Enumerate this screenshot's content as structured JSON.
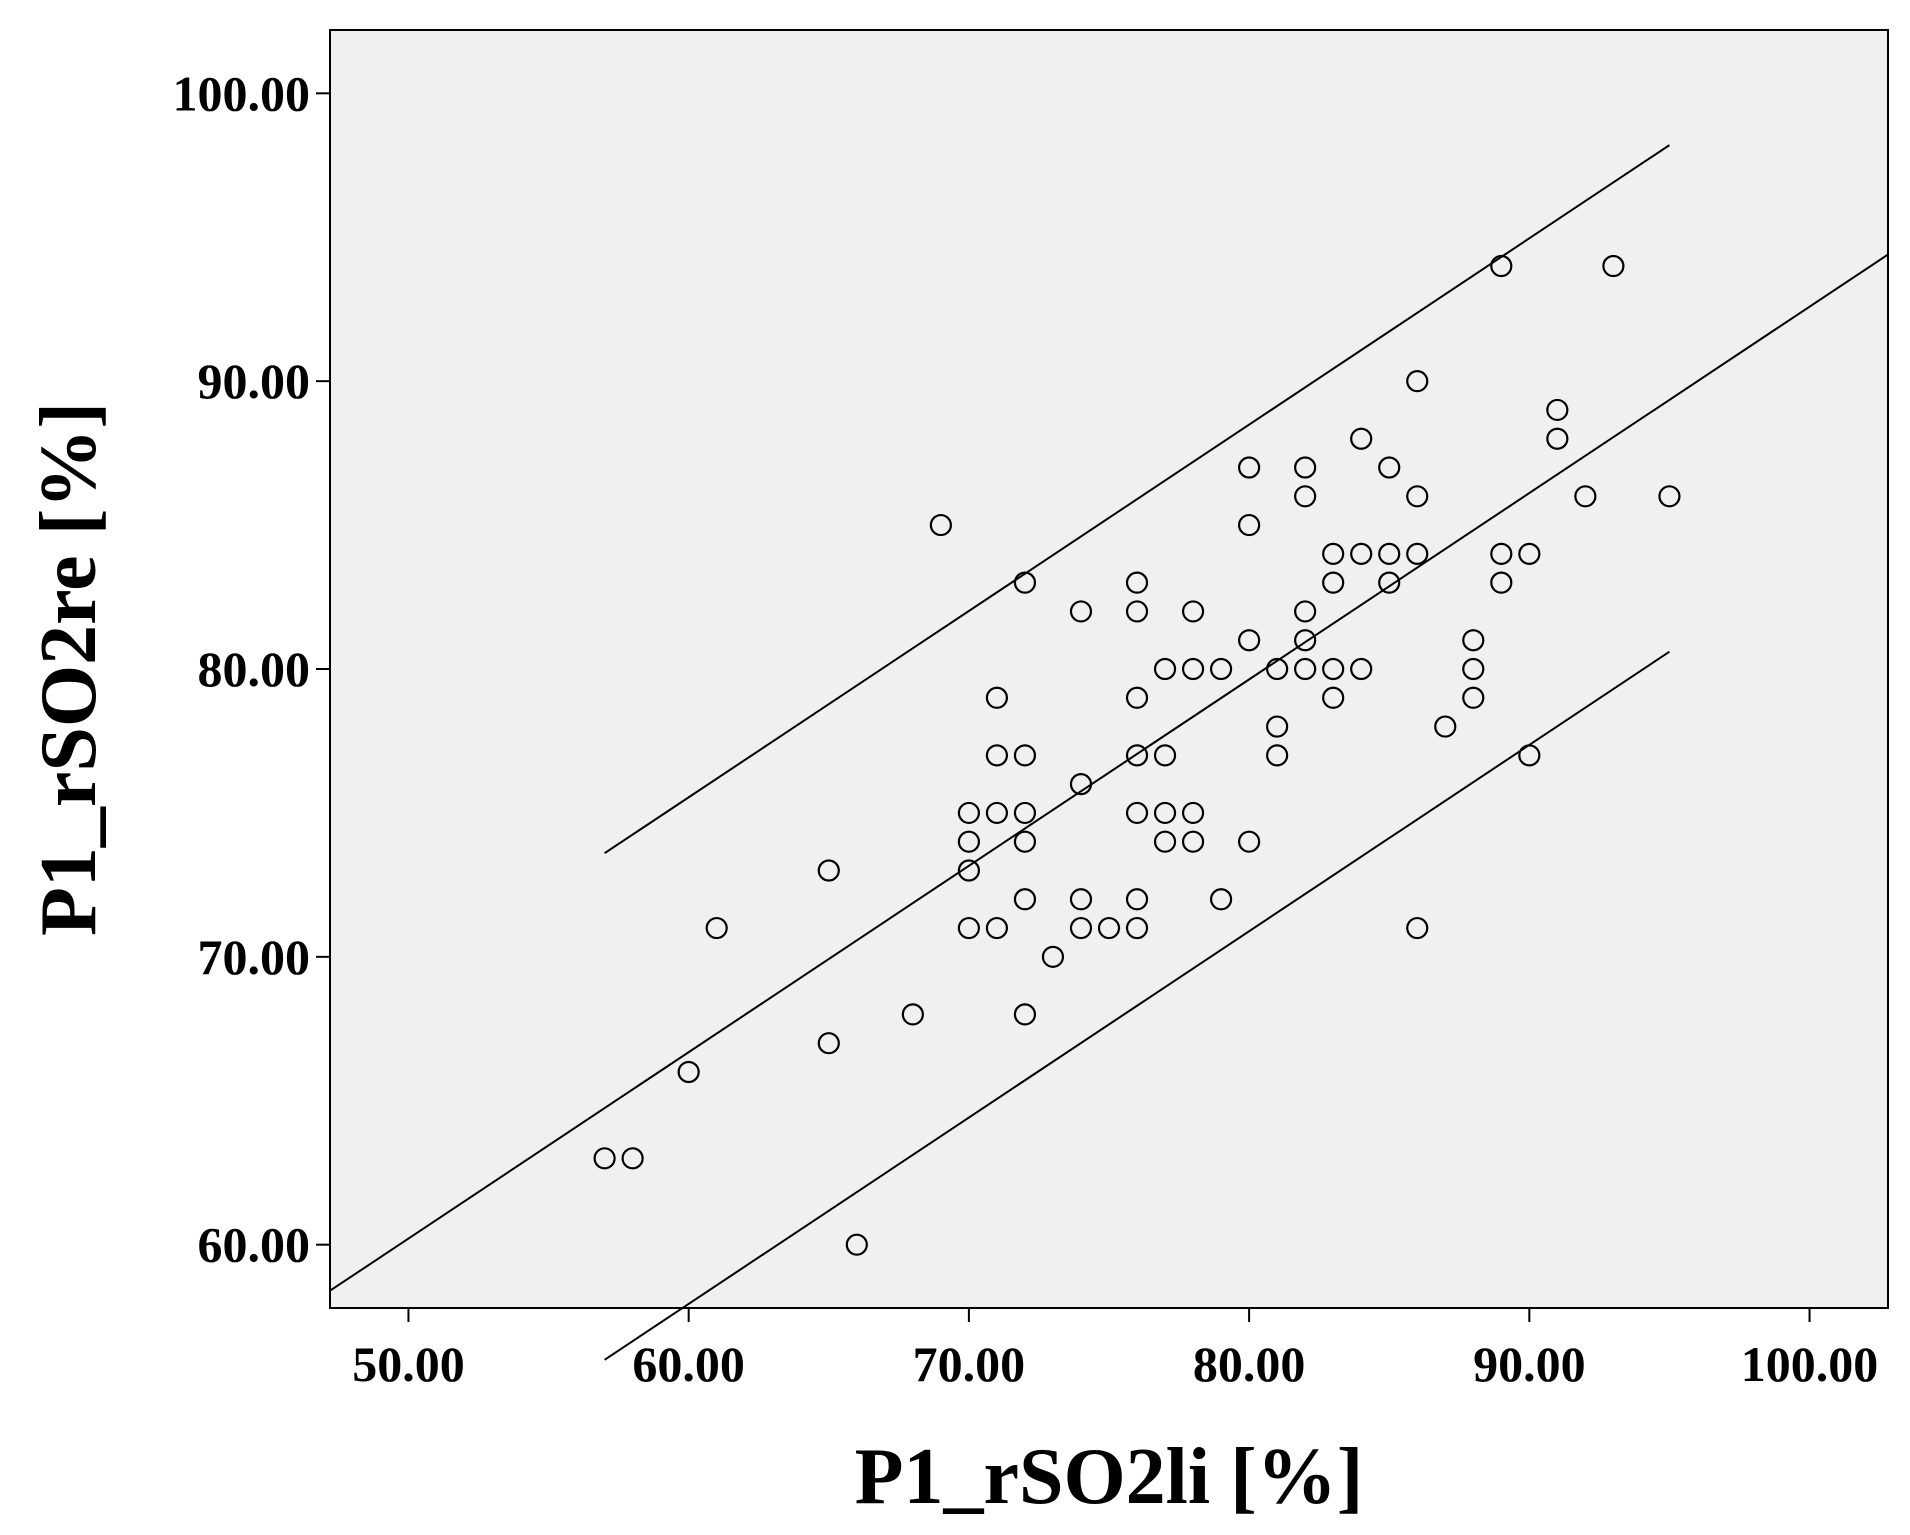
{
  "chart_data": {
    "type": "scatter",
    "xlabel": "P1_rSO2li [%]",
    "ylabel": "P1_rSO2re [%]",
    "xlim": [
      47.2,
      102.8
    ],
    "ylim": [
      57.8,
      102.2
    ],
    "x_ticks": [
      50,
      60,
      70,
      80,
      90,
      100
    ],
    "y_ticks": [
      60,
      70,
      80,
      90,
      100
    ],
    "x_tick_labels": [
      "50.00",
      "60.00",
      "70.00",
      "80.00",
      "90.00",
      "100.00"
    ],
    "y_tick_labels": [
      "60.00",
      "70.00",
      "80.00",
      "90.00",
      "100.00"
    ],
    "grid": false,
    "colors": {
      "plot_background": "#eff0ef",
      "marker_stroke": "#000000",
      "line": "#000000"
    },
    "points": [
      [
        57,
        63
      ],
      [
        58,
        63
      ],
      [
        60,
        66
      ],
      [
        61,
        71
      ],
      [
        65,
        73
      ],
      [
        65,
        67
      ],
      [
        66,
        60
      ],
      [
        68,
        68
      ],
      [
        69,
        85
      ],
      [
        70,
        75
      ],
      [
        70,
        74
      ],
      [
        70,
        73
      ],
      [
        70,
        71
      ],
      [
        71,
        79
      ],
      [
        71,
        77
      ],
      [
        71,
        75
      ],
      [
        71,
        71
      ],
      [
        72,
        83
      ],
      [
        72,
        77
      ],
      [
        72,
        75
      ],
      [
        72,
        74
      ],
      [
        72,
        72
      ],
      [
        72,
        68
      ],
      [
        73,
        70
      ],
      [
        74,
        82
      ],
      [
        74,
        76
      ],
      [
        74,
        72
      ],
      [
        74,
        71
      ],
      [
        75,
        71
      ],
      [
        76,
        83
      ],
      [
        76,
        82
      ],
      [
        76,
        79
      ],
      [
        76,
        77
      ],
      [
        76,
        75
      ],
      [
        76,
        72
      ],
      [
        76,
        71
      ],
      [
        77,
        80
      ],
      [
        77,
        77
      ],
      [
        77,
        75
      ],
      [
        77,
        74
      ],
      [
        78,
        82
      ],
      [
        78,
        80
      ],
      [
        78,
        75
      ],
      [
        78,
        74
      ],
      [
        79,
        80
      ],
      [
        79,
        72
      ],
      [
        80,
        87
      ],
      [
        80,
        85
      ],
      [
        80,
        81
      ],
      [
        80,
        74
      ],
      [
        81,
        80
      ],
      [
        81,
        78
      ],
      [
        81,
        77
      ],
      [
        82,
        87
      ],
      [
        82,
        86
      ],
      [
        82,
        82
      ],
      [
        82,
        81
      ],
      [
        82,
        80
      ],
      [
        83,
        84
      ],
      [
        83,
        83
      ],
      [
        83,
        80
      ],
      [
        83,
        79
      ],
      [
        84,
        88
      ],
      [
        84,
        84
      ],
      [
        84,
        80
      ],
      [
        85,
        87
      ],
      [
        85,
        84
      ],
      [
        85,
        83
      ],
      [
        86,
        90
      ],
      [
        86,
        86
      ],
      [
        86,
        84
      ],
      [
        86,
        71
      ],
      [
        87,
        78
      ],
      [
        88,
        81
      ],
      [
        88,
        80
      ],
      [
        88,
        79
      ],
      [
        89,
        94
      ],
      [
        89,
        84
      ],
      [
        89,
        83
      ],
      [
        90,
        84
      ],
      [
        90,
        77
      ],
      [
        91,
        89
      ],
      [
        91,
        88
      ],
      [
        92,
        86
      ],
      [
        93,
        94
      ],
      [
        95,
        86
      ]
    ],
    "lines": [
      {
        "x": [
          47.2,
          102.8
        ],
        "y": [
          58.4,
          94.4
        ]
      },
      {
        "x": [
          57,
          95
        ],
        "y": [
          73.6,
          98.2
        ]
      },
      {
        "x": [
          57,
          95
        ],
        "y": [
          56.0,
          80.6
        ]
      }
    ]
  }
}
